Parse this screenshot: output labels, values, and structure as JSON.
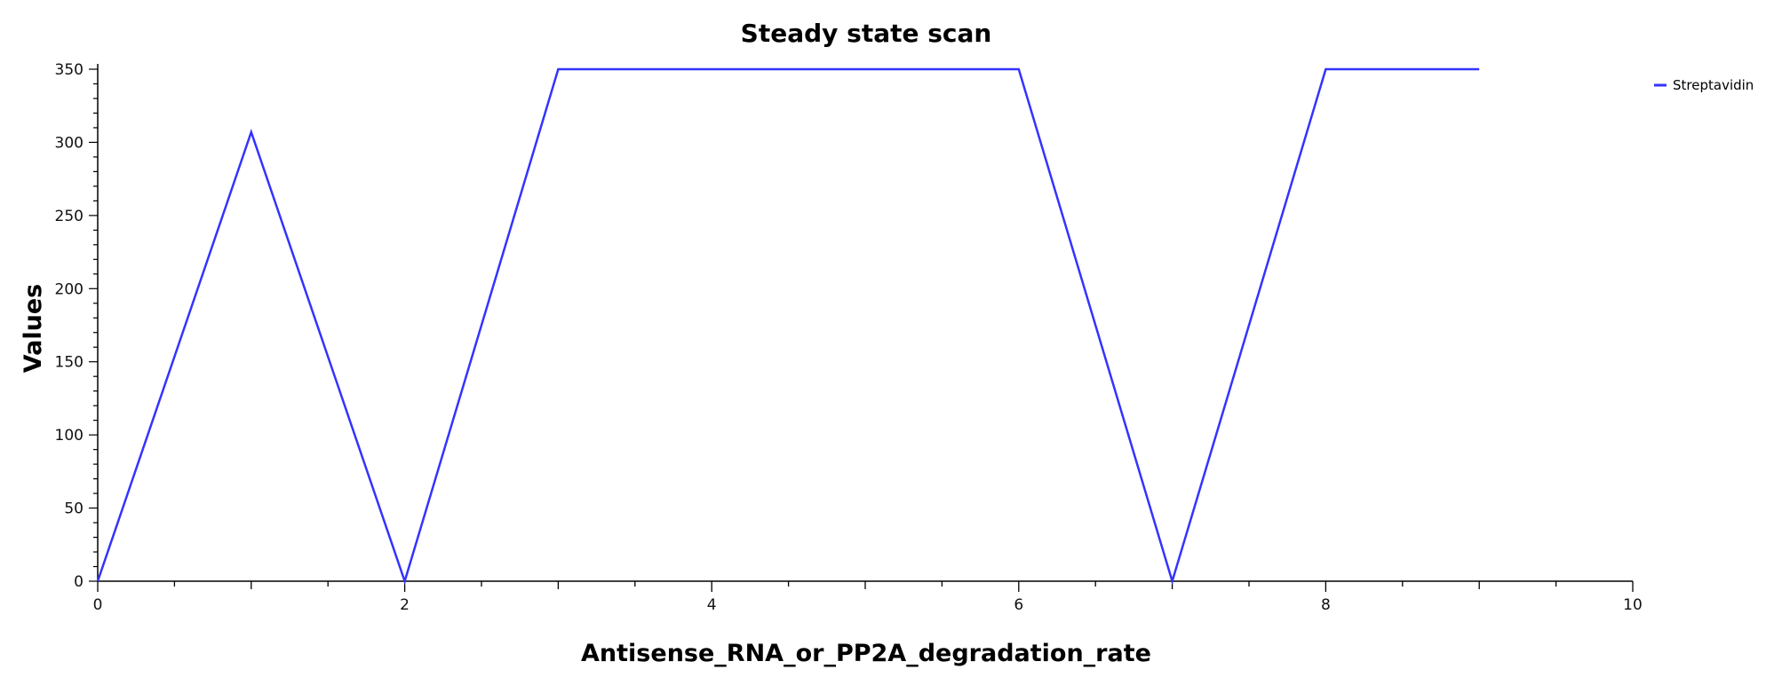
{
  "chart_data": {
    "type": "line",
    "title": "Steady state scan",
    "xlabel": "Antisense_RNA_or_PP2A_degradation_rate",
    "ylabel": "Values",
    "xlim": [
      0,
      10
    ],
    "ylim": [
      0,
      350
    ],
    "x_ticks": [
      0,
      2,
      4,
      6,
      8,
      10
    ],
    "y_ticks": [
      0,
      50,
      100,
      150,
      200,
      250,
      300,
      350
    ],
    "grid": false,
    "legend_position": "top-right",
    "series": [
      {
        "name": "Streptavidin",
        "color": "#3333ff",
        "x": [
          0,
          1,
          2,
          3,
          4,
          5,
          6,
          7,
          8,
          9
        ],
        "y": [
          0,
          307,
          0,
          350,
          350,
          350,
          350,
          0,
          350,
          350
        ]
      }
    ]
  }
}
